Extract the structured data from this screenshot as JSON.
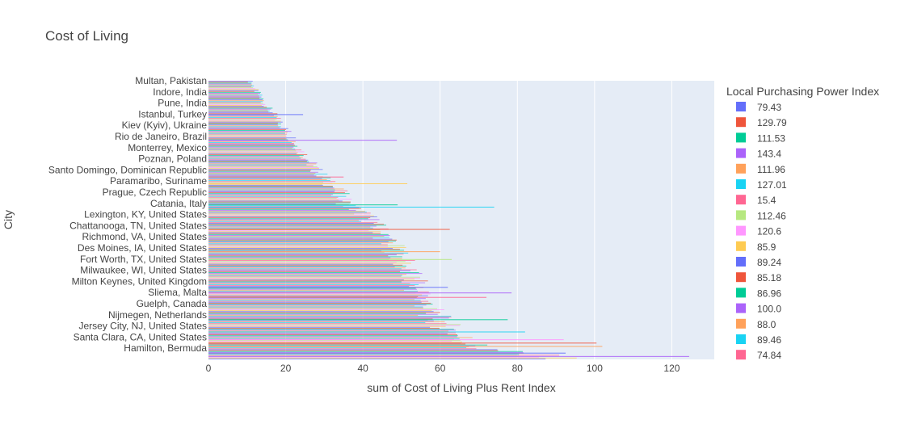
{
  "chart_data": {
    "type": "bar",
    "orientation": "horizontal",
    "title": "Cost of Living",
    "xlabel": "sum of Cost of Living Plus Rent Index",
    "ylabel": "City",
    "xlim": [
      0,
      131
    ],
    "xticks": [
      0,
      20,
      40,
      60,
      80,
      100,
      120
    ],
    "grid": true,
    "legend_title": "Local Purchasing Power Index",
    "legend_position": "right",
    "city_labels": [
      "Multan, Pakistan",
      "Indore, India",
      "Pune, India",
      "Istanbul, Turkey",
      "Kiev (Kyiv), Ukraine",
      "Rio de Janeiro, Brazil",
      "Monterrey, Mexico",
      "Poznan, Poland",
      "Santo Domingo, Dominican Republic",
      "Paramaribo, Suriname",
      "Prague, Czech Republic",
      "Catania, Italy",
      "Lexington, KY, United States",
      "Chattanooga, TN, United States",
      "Richmond, VA, United States",
      "Des Moines, IA, United States",
      "Fort Worth, TX, United States",
      "Milwaukee, WI, United States",
      "Milton Keynes, United Kingdom",
      "Sliema, Malta",
      "Guelph, Canada",
      "Nijmegen, Netherlands",
      "Jersey City, NJ, United States",
      "Santa Clara, CA, United States",
      "Hamilton, Bermuda"
    ],
    "envelope": [
      [
        0,
        11.5
      ],
      [
        1,
        13.5
      ],
      [
        2,
        15.5
      ],
      [
        3,
        18.0
      ],
      [
        4,
        20.5
      ],
      [
        5,
        23.0
      ],
      [
        6,
        25.0
      ],
      [
        7,
        27.5
      ],
      [
        8,
        30.0
      ],
      [
        9,
        33.0
      ],
      [
        10,
        36.5
      ],
      [
        11,
        38.0
      ],
      [
        12,
        43.5
      ],
      [
        13,
        46.5
      ],
      [
        14,
        49.0
      ],
      [
        15,
        51.5
      ],
      [
        16,
        53.5
      ],
      [
        17,
        55.0
      ],
      [
        18,
        57.0
      ],
      [
        19,
        58.5
      ],
      [
        20,
        60.5
      ],
      [
        21,
        62.5
      ],
      [
        22,
        66.0
      ],
      [
        23,
        70.0
      ],
      [
        24,
        75.0
      ],
      [
        24.5,
        88.0
      ],
      [
        25,
        100.0
      ]
    ],
    "outliers": [
      {
        "pos": 3.0,
        "value": 24.5
      },
      {
        "pos": 5.3,
        "value": 48.8
      },
      {
        "pos": 8.6,
        "value": 35.0
      },
      {
        "pos": 9.2,
        "value": 51.5
      },
      {
        "pos": 11.1,
        "value": 49.0
      },
      {
        "pos": 11.3,
        "value": 74.0
      },
      {
        "pos": 13.3,
        "value": 62.5
      },
      {
        "pos": 15.3,
        "value": 60.0
      },
      {
        "pos": 16.0,
        "value": 63.0
      },
      {
        "pos": 18.5,
        "value": 62.0
      },
      {
        "pos": 19.0,
        "value": 78.5
      },
      {
        "pos": 19.4,
        "value": 72.0
      },
      {
        "pos": 21.4,
        "value": 77.5
      },
      {
        "pos": 22.5,
        "value": 82.0
      },
      {
        "pos": 23.2,
        "value": 92.0
      },
      {
        "pos": 23.5,
        "value": 100.5
      },
      {
        "pos": 23.8,
        "value": 102.0
      },
      {
        "pos": 24.4,
        "value": 92.5
      },
      {
        "pos": 24.7,
        "value": 124.5
      }
    ],
    "series": [
      {
        "name": "79.43",
        "color": "#636efa"
      },
      {
        "name": "129.79",
        "color": "#EF553B"
      },
      {
        "name": "111.53",
        "color": "#00cc96"
      },
      {
        "name": "143.4",
        "color": "#ab63fa"
      },
      {
        "name": "111.96",
        "color": "#FFA15A"
      },
      {
        "name": "127.01",
        "color": "#19d3f3"
      },
      {
        "name": "15.4",
        "color": "#FF6692"
      },
      {
        "name": "112.46",
        "color": "#B6E880"
      },
      {
        "name": "120.6",
        "color": "#FF97FF"
      },
      {
        "name": "85.9",
        "color": "#FECB52"
      },
      {
        "name": "89.24",
        "color": "#636efa"
      },
      {
        "name": "85.18",
        "color": "#EF553B"
      },
      {
        "name": "86.96",
        "color": "#00cc96"
      },
      {
        "name": "100.0",
        "color": "#ab63fa"
      },
      {
        "name": "88.0",
        "color": "#FFA15A"
      },
      {
        "name": "89.46",
        "color": "#19d3f3"
      },
      {
        "name": "74.84",
        "color": "#FF6692"
      }
    ]
  }
}
